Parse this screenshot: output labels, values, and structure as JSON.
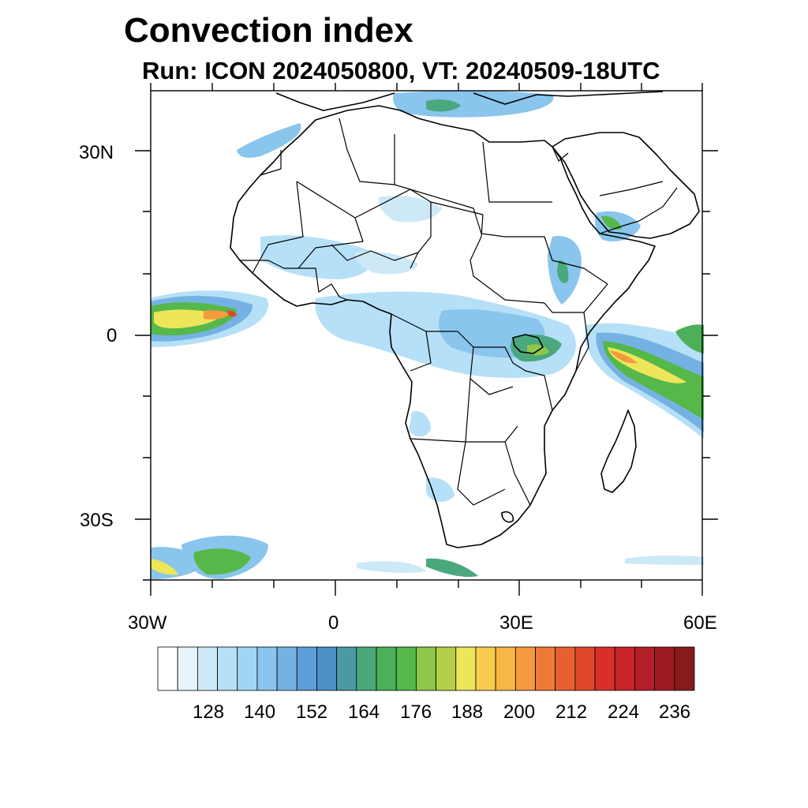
{
  "title": "Convection index",
  "subtitle": "Run: ICON 2024050800,  VT: 20240509-18UTC",
  "axes": {
    "y_labels": [
      "30N",
      "0",
      "30S"
    ],
    "x_labels": [
      "30W",
      "0",
      "30E",
      "60E"
    ]
  },
  "colorbar": {
    "colors": [
      "#ffffff",
      "#e7f4fc",
      "#cde9f8",
      "#b6e0f7",
      "#9fd6f5",
      "#89c5ec",
      "#75b2e3",
      "#5f9dd8",
      "#4d8fc7",
      "#4a9aa4",
      "#4ba87d",
      "#4daf5a",
      "#55b848",
      "#8fc748",
      "#b4d049",
      "#ede55a",
      "#f7cc4f",
      "#f7b745",
      "#f59a3e",
      "#ef7a35",
      "#e8602f",
      "#e0482b",
      "#d82f2b",
      "#c9232a",
      "#b41e28",
      "#9e1b24",
      "#871b1c"
    ],
    "labels": [
      "128",
      "140",
      "152",
      "164",
      "176",
      "188",
      "200",
      "212",
      "224",
      "236"
    ]
  }
}
